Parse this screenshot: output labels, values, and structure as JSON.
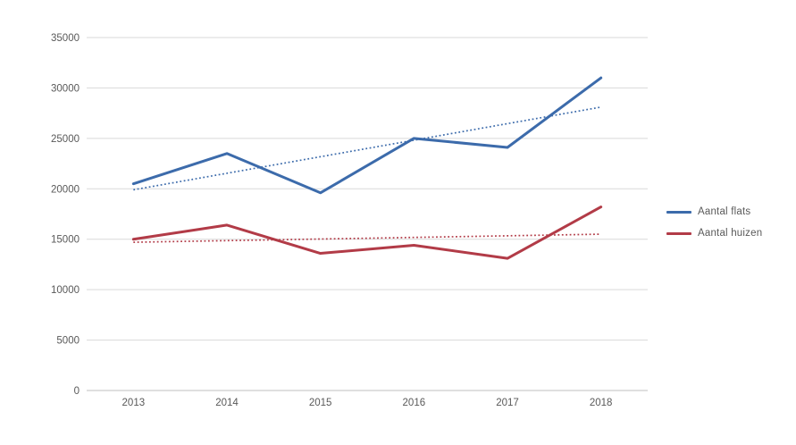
{
  "chart_data": {
    "type": "line",
    "title": "",
    "xlabel": "",
    "ylabel": "",
    "categories": [
      "2013",
      "2014",
      "2015",
      "2016",
      "2017",
      "2018"
    ],
    "series": [
      {
        "name": "Aantal flats",
        "color": "#3c6bab",
        "values": [
          20500,
          23500,
          19600,
          25000,
          24100,
          31000
        ],
        "trendline": {
          "start": 19900,
          "end": 28100
        }
      },
      {
        "name": "Aantal huizen",
        "color": "#b23b47",
        "values": [
          15000,
          16400,
          13600,
          14400,
          13100,
          18200
        ],
        "trendline": {
          "start": 14700,
          "end": 15500
        }
      }
    ],
    "ylim": [
      0,
      35000
    ],
    "ytick_step": 5000,
    "y_tick_labels": [
      "0",
      "5000",
      "10000",
      "15000",
      "20000",
      "25000",
      "30000",
      "35000"
    ],
    "grid": true,
    "legend_position": "right",
    "colors": {
      "gridline": "#d9d9d9",
      "axis_line": "#bfbfbf",
      "tick_text": "#595959"
    }
  }
}
